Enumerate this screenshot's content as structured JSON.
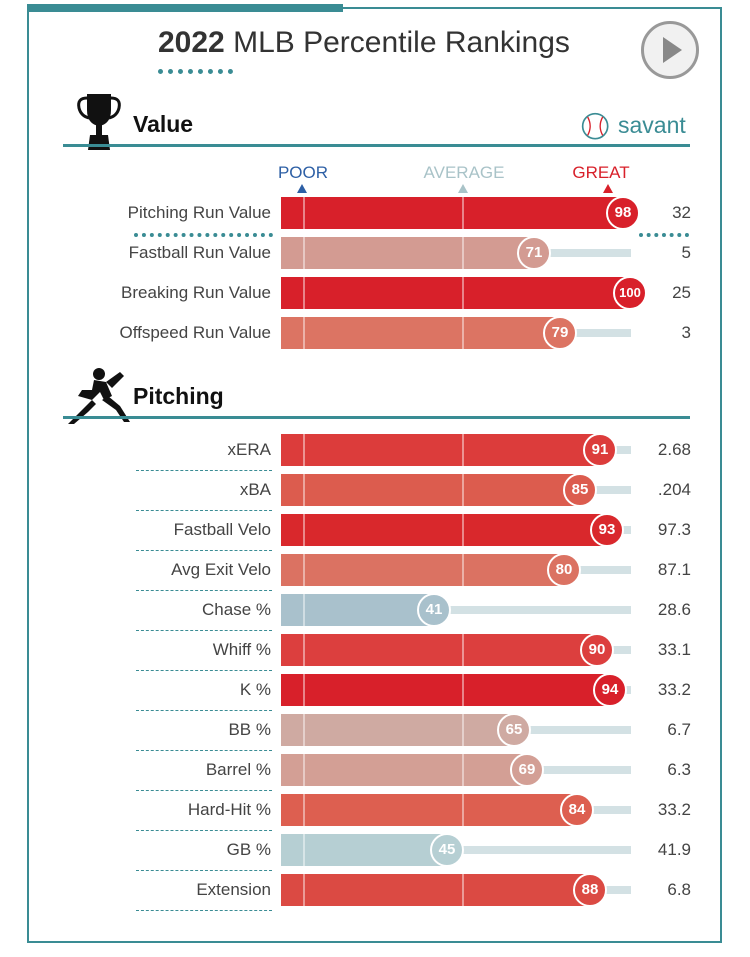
{
  "header": {
    "title_year": "2022",
    "title_rest": " MLB Percentile Rankings",
    "play_button_icon": "play-icon"
  },
  "brand": {
    "name": "savant",
    "icon": "baseball-icon",
    "color": "#3a8c94"
  },
  "legend": {
    "poor": {
      "label": "POOR",
      "color": "#2d5fa5"
    },
    "average": {
      "label": "AVERAGE",
      "color": "#a9c3c8"
    },
    "great": {
      "label": "GREAT",
      "color": "#d8202a"
    }
  },
  "sections": [
    {
      "title": "Value",
      "icon": "trophy-icon"
    },
    {
      "title": "Pitching",
      "icon": "pitcher-icon"
    }
  ],
  "chart_data": {
    "type": "bar",
    "xlim": [
      0,
      100
    ],
    "groups": [
      {
        "name": "Value",
        "rows": [
          {
            "label": "Pitching Run Value",
            "percentile": 98,
            "value": "32",
            "color": "#d8202a"
          },
          {
            "label": "Fastball Run Value",
            "percentile": 71,
            "value": "5",
            "color": "#d39b92"
          },
          {
            "label": "Breaking Run Value",
            "percentile": 100,
            "value": "25",
            "color": "#d8202a"
          },
          {
            "label": "Offspeed Run Value",
            "percentile": 79,
            "value": "3",
            "color": "#dc7463"
          }
        ]
      },
      {
        "name": "Pitching",
        "rows": [
          {
            "label": "xERA",
            "percentile": 91,
            "value": "2.68",
            "color": "#dc3c3b"
          },
          {
            "label": "xBA",
            "percentile": 85,
            "value": ".204",
            "color": "#dc5c4e"
          },
          {
            "label": "Fastball Velo",
            "percentile": 93,
            "value": "97.3",
            "color": "#d9282c"
          },
          {
            "label": "Avg Exit Velo",
            "percentile": 80,
            "value": "87.1",
            "color": "#db7262"
          },
          {
            "label": "Chase %",
            "percentile": 41,
            "value": "28.6",
            "color": "#a9c1cc"
          },
          {
            "label": "Whiff %",
            "percentile": 90,
            "value": "33.1",
            "color": "#dc3f3e"
          },
          {
            "label": "K %",
            "percentile": 94,
            "value": "33.2",
            "color": "#d8202a"
          },
          {
            "label": "BB %",
            "percentile": 65,
            "value": "6.7",
            "color": "#cfaaa2"
          },
          {
            "label": "Barrel %",
            "percentile": 69,
            "value": "6.3",
            "color": "#d39f95"
          },
          {
            "label": "Hard-Hit %",
            "percentile": 84,
            "value": "33.2",
            "color": "#dd5f50"
          },
          {
            "label": "GB %",
            "percentile": 45,
            "value": "41.9",
            "color": "#b6cfd3"
          },
          {
            "label": "Extension",
            "percentile": 88,
            "value": "6.8",
            "color": "#db4a43"
          }
        ]
      }
    ]
  }
}
